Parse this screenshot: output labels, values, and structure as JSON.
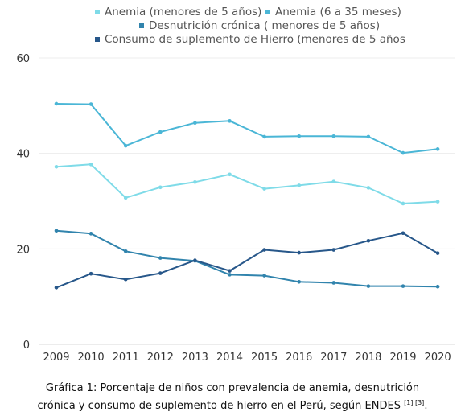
{
  "chart_data": {
    "type": "line",
    "x": [
      "2009",
      "2010",
      "2011",
      "2012",
      "2013",
      "2014",
      "2015",
      "2016",
      "2017",
      "2018",
      "2019",
      "2020"
    ],
    "ylim": [
      0,
      60
    ],
    "yticks": [
      "0",
      "20",
      "40",
      "60"
    ],
    "grid": true,
    "legend_position": "top",
    "series": [
      {
        "name": "Anemia (menores de 5 años)",
        "color": "#7fdbe8",
        "values": [
          37.2,
          37.7,
          30.7,
          32.9,
          34.0,
          35.6,
          32.6,
          33.3,
          34.1,
          32.8,
          29.5,
          29.9
        ]
      },
      {
        "name": "Anemia (6 a 35 meses)",
        "color": "#4ab6d6",
        "values": [
          50.4,
          50.3,
          41.6,
          44.5,
          46.4,
          46.8,
          43.5,
          43.6,
          43.6,
          43.5,
          40.1,
          40.9
        ]
      },
      {
        "name": "Desnutrición crónica ( menores de 5 años)",
        "color": "#3184ad",
        "values": [
          23.8,
          23.2,
          19.5,
          18.1,
          17.5,
          14.6,
          14.4,
          13.1,
          12.9,
          12.2,
          12.2,
          12.1
        ]
      },
      {
        "name": "Consumo de suplemento de Hierro (menores de 5 años",
        "color": "#27578a",
        "values": [
          11.9,
          14.8,
          13.6,
          14.9,
          17.6,
          15.4,
          19.8,
          19.2,
          19.8,
          21.7,
          23.3,
          19.1
        ]
      }
    ]
  },
  "caption": {
    "line1": "Gráfica 1: Porcentaje de niños con prevalencia de anemia, desnutrición",
    "line2": "crónica y consumo de suplemento de hierro en el Perú, según ENDES",
    "refs": "[1] [3]",
    "end": "."
  }
}
